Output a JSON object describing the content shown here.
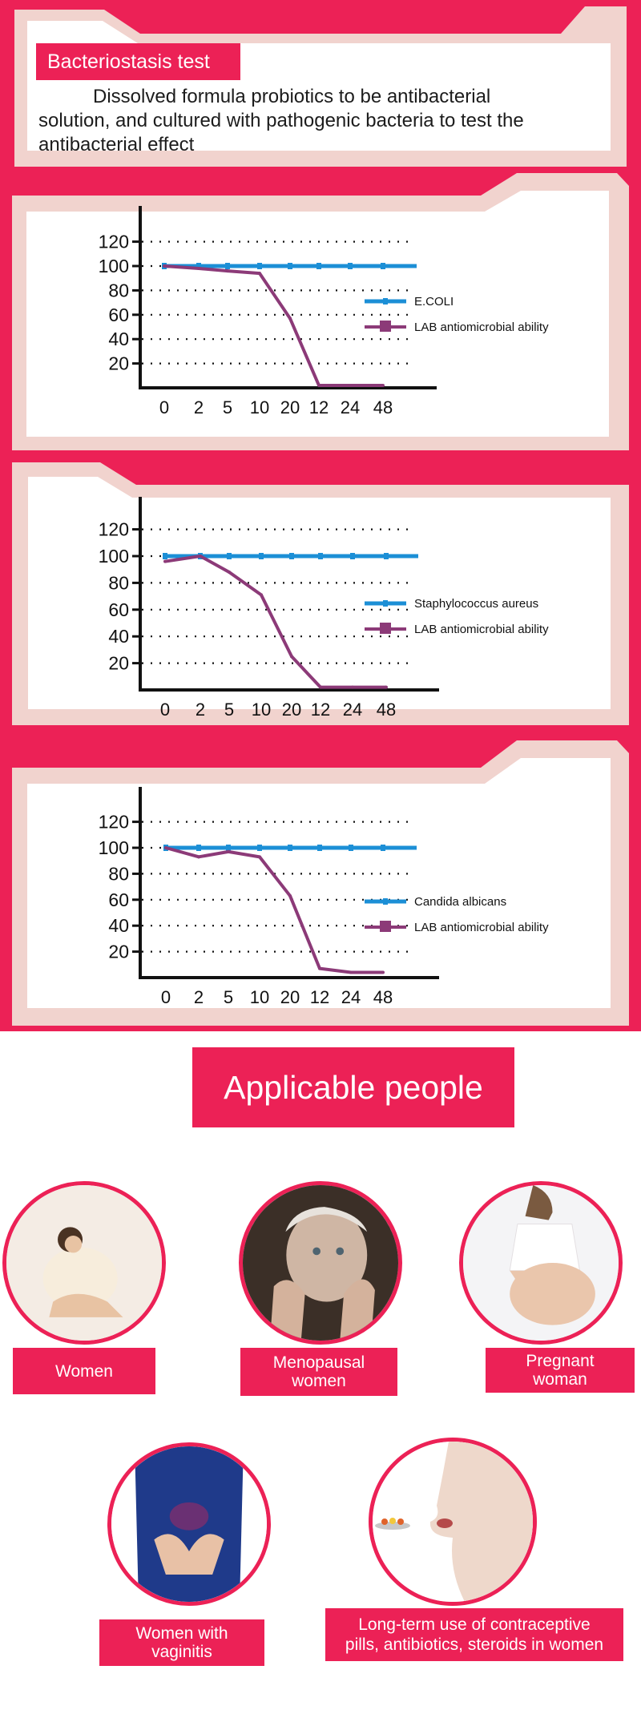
{
  "header": {
    "badge": "Bacteriostasis test",
    "description": "Dissolved formula probiotics to be antibacterial solution, and cultured with pathogenic bacteria to test the antibacterial effect"
  },
  "colors": {
    "brand_pink": "#ec2156",
    "frame_beige": "#f1d3ce",
    "blue_series": "#1c8fd6",
    "purple_series": "#8c3a78"
  },
  "chart_data": [
    {
      "type": "line",
      "x": [
        "0",
        "2",
        "5",
        "10",
        "20",
        "12",
        "24",
        "48"
      ],
      "yticks": [
        20,
        40,
        60,
        80,
        100,
        120
      ],
      "ylim": [
        0,
        130
      ],
      "grid": "dotted horizontal",
      "legend_position": "right",
      "series": [
        {
          "name": "E.COLI",
          "values": [
            100,
            100,
            100,
            100,
            100,
            100,
            100,
            100
          ]
        },
        {
          "name": "LAB  antiomicrobial ability",
          "values": [
            100,
            98,
            96,
            94,
            57,
            2,
            2,
            2
          ]
        }
      ]
    },
    {
      "type": "line",
      "x": [
        "0",
        "2",
        "5",
        "10",
        "20",
        "12",
        "24",
        "48"
      ],
      "yticks": [
        20,
        40,
        60,
        80,
        100,
        120
      ],
      "ylim": [
        0,
        130
      ],
      "grid": "dotted horizontal",
      "legend_position": "right",
      "series": [
        {
          "name": "Staphylococcus aureus",
          "values": [
            100,
            100,
            100,
            100,
            100,
            100,
            100,
            100
          ]
        },
        {
          "name": "LAB  antiomicrobial ability",
          "values": [
            96,
            100,
            88,
            71,
            25,
            2,
            2,
            2
          ]
        }
      ]
    },
    {
      "type": "line",
      "x": [
        "0",
        "2",
        "5",
        "10",
        "20",
        "12",
        "24",
        "48"
      ],
      "yticks": [
        20,
        40,
        60,
        80,
        100,
        120
      ],
      "ylim": [
        0,
        130
      ],
      "grid": "dotted horizontal",
      "legend_position": "right",
      "series": [
        {
          "name": "Candida albicans",
          "values": [
            100,
            100,
            100,
            100,
            100,
            100,
            100,
            100
          ]
        },
        {
          "name": "LAB  antiomicrobial ability",
          "values": [
            100,
            93,
            97,
            93,
            63,
            7,
            4,
            4
          ]
        }
      ]
    }
  ],
  "applicable": {
    "title": "Applicable people",
    "people": [
      {
        "label": "Women"
      },
      {
        "label": "Menopausal\nwomen"
      },
      {
        "label": "Pregnant\nwoman"
      },
      {
        "label": "Women with\nvaginitis"
      },
      {
        "label": "Long-term use of contraceptive\npills, antibiotics, steroids in women"
      }
    ]
  }
}
